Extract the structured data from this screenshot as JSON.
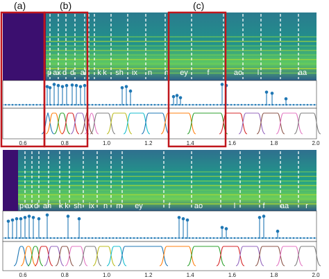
{
  "panel_labels": [
    "(a)",
    "(b)",
    "(c)"
  ],
  "top_figure": {
    "phones": [
      "p",
      "ax",
      "d",
      "d",
      "al",
      "k",
      "k",
      "sh",
      "ix",
      "n",
      "n",
      "ey",
      "f",
      "ao",
      "l",
      "f",
      "aa"
    ],
    "x_ticks": [
      "0.6",
      "0.8",
      "1.0",
      "1.2",
      "1.4",
      "1.6",
      "1.8",
      "2.0"
    ]
  },
  "bottom_figure": {
    "phones": [
      "p",
      "ax",
      "d",
      "ah",
      "k",
      "k",
      "sh",
      "ix",
      "n",
      "m",
      "ey",
      "f",
      "ao",
      "l",
      "f",
      "aa",
      "r"
    ],
    "x_ticks": [
      "0.6",
      "0.8",
      "1.0",
      "1.2",
      "1.4",
      "1.6",
      "1.8",
      "2.0"
    ]
  },
  "colors": {
    "spectrogram_dark": "#3b0f6f",
    "spectrogram_mid": "#26828e",
    "spectrogram_bright": "#b5de2b",
    "stem": "#1f77b4",
    "highlight_box": "#c0161c"
  }
}
